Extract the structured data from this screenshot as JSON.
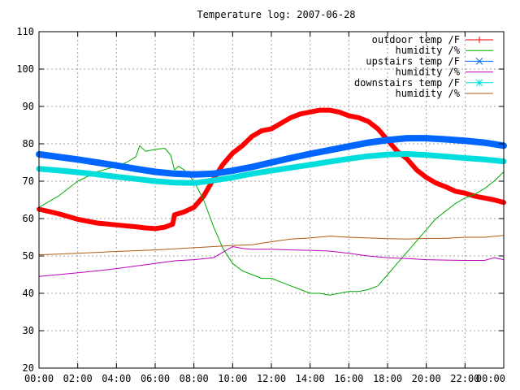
{
  "chart_data": {
    "type": "line",
    "title": "Temperature log: 2007-06-28",
    "xlabel": "",
    "ylabel": "",
    "xlim": [
      0,
      24
    ],
    "ylim": [
      20,
      110
    ],
    "grid": true,
    "legend_position": "top-right",
    "x_tick_labels": [
      "00:00",
      "02:00",
      "04:00",
      "06:00",
      "08:00",
      "10:00",
      "12:00",
      "14:00",
      "16:00",
      "18:00",
      "20:00",
      "22:00",
      "00:00"
    ],
    "y_tick_labels": [
      "20",
      "30",
      "40",
      "50",
      "60",
      "70",
      "80",
      "90",
      "100",
      "110"
    ],
    "series": [
      {
        "name": "outdoor temp /F",
        "color": "#ff0000",
        "marker": "plus",
        "x": [
          0,
          1,
          2,
          3,
          4,
          5,
          5.5,
          6,
          6.5,
          6.9,
          7,
          7.5,
          8,
          8.5,
          9,
          9.5,
          10,
          10.5,
          11,
          11.5,
          12,
          12.5,
          13,
          13.5,
          14,
          14.5,
          15,
          15.5,
          16,
          16.5,
          17,
          17.5,
          18,
          18.5,
          19,
          19.5,
          20,
          20.5,
          21,
          21.5,
          22,
          22.5,
          23,
          23.5,
          24
        ],
        "y": [
          62.5,
          61.3,
          59.8,
          58.8,
          58.3,
          57.8,
          57.5,
          57.3,
          57.7,
          58.5,
          61,
          61.8,
          63,
          66,
          70.5,
          74.5,
          77.5,
          79.5,
          82,
          83.5,
          84,
          85.5,
          87,
          88,
          88.5,
          89,
          89,
          88.5,
          87.5,
          87,
          86,
          84,
          81,
          78,
          76,
          73,
          71,
          69.5,
          68.5,
          67.3,
          66.8,
          66,
          65.5,
          65,
          64.3
        ]
      },
      {
        "name": "humidity /%",
        "color": "#00aa00",
        "marker": "none",
        "x": [
          0,
          1,
          2,
          3,
          4,
          4.5,
          5,
          5.2,
          5.5,
          6,
          6.5,
          6.8,
          7,
          7.2,
          7.5,
          8,
          8.5,
          9,
          9.5,
          10,
          10.5,
          11,
          11.5,
          12,
          12.5,
          13,
          13.5,
          14,
          14.5,
          15,
          15.5,
          16,
          16.5,
          17,
          17.5,
          18,
          18.5,
          19,
          19.5,
          20,
          20.5,
          21,
          21.5,
          22,
          22.5,
          23,
          23.5,
          24
        ],
        "y": [
          63,
          66,
          70,
          72.5,
          74,
          75,
          76.5,
          79.5,
          78,
          78.5,
          78.8,
          77,
          73,
          74,
          73,
          70,
          65,
          58,
          52,
          48,
          46,
          45,
          44,
          44,
          43,
          42,
          41,
          40,
          40,
          39.5,
          40,
          40.5,
          40.5,
          41,
          42,
          45,
          48,
          51,
          54,
          57,
          60,
          62,
          64,
          65.5,
          66.5,
          68,
          70,
          72.5
        ]
      },
      {
        "name": "upstairs temp /F",
        "color": "#0066ff",
        "marker": "x",
        "x": [
          0,
          1,
          2,
          3,
          4,
          5,
          6,
          7,
          8,
          9,
          10,
          11,
          12,
          13,
          14,
          15,
          16,
          17,
          18,
          19,
          20,
          21,
          22,
          23,
          24
        ],
        "y": [
          77.2,
          76.5,
          75.8,
          75,
          74.2,
          73.3,
          72.5,
          72,
          71.8,
          72,
          72.8,
          73.8,
          75,
          76.2,
          77.3,
          78.3,
          79.3,
          80.3,
          81,
          81.5,
          81.5,
          81.2,
          80.8,
          80.3,
          79.5
        ]
      },
      {
        "name": "humidity /%",
        "color": "#bb00bb",
        "marker": "none",
        "x": [
          0,
          1,
          2,
          3,
          4,
          5,
          6,
          7,
          8,
          9,
          9.5,
          10,
          10.5,
          11,
          12,
          13,
          14,
          15,
          16,
          17,
          18,
          19,
          20,
          21,
          22,
          23,
          23.5,
          24
        ],
        "y": [
          44.5,
          45,
          45.5,
          46,
          46.6,
          47.3,
          48,
          48.7,
          49,
          49.5,
          51,
          52.5,
          52,
          51.8,
          51.8,
          51.6,
          51.5,
          51.3,
          50.7,
          50,
          49.5,
          49.3,
          49,
          48.9,
          48.8,
          48.8,
          49.5,
          49
        ]
      },
      {
        "name": "downstairs temp /F",
        "color": "#00dddd",
        "marker": "star",
        "x": [
          0,
          1,
          2,
          3,
          4,
          5,
          6,
          7,
          8,
          9,
          10,
          11,
          12,
          13,
          14,
          15,
          16,
          17,
          18,
          19,
          20,
          21,
          22,
          23,
          24
        ],
        "y": [
          73.3,
          72.9,
          72.4,
          71.8,
          71.2,
          70.6,
          70,
          69.6,
          69.5,
          70.2,
          71,
          72,
          72.8,
          73.6,
          74.4,
          75.2,
          76,
          76.7,
          77.1,
          77.3,
          77,
          76.6,
          76.2,
          75.8,
          75.3
        ]
      },
      {
        "name": "humidity /%",
        "color": "#b05a10",
        "marker": "none",
        "x": [
          0,
          2,
          4,
          6,
          8,
          9,
          10,
          11,
          12,
          13,
          14,
          15,
          16,
          17,
          18,
          19,
          20,
          21,
          22,
          23,
          24
        ],
        "y": [
          50.3,
          50.7,
          51.2,
          51.6,
          52.2,
          52.5,
          52.8,
          53,
          53.8,
          54.5,
          54.8,
          55.3,
          55,
          54.8,
          54.6,
          54.5,
          54.7,
          54.7,
          55,
          55,
          55.5
        ]
      }
    ]
  }
}
